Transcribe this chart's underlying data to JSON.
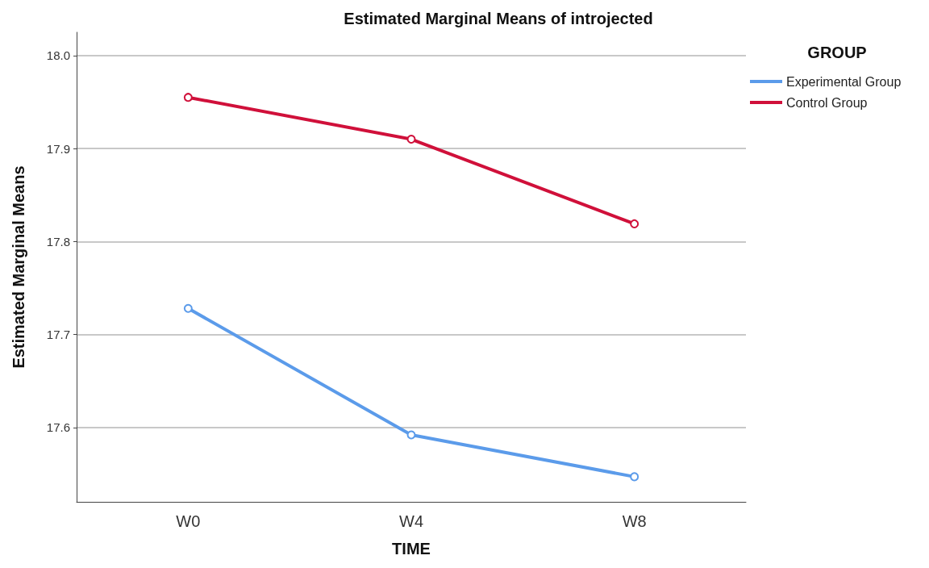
{
  "chart_data": {
    "type": "line",
    "title": "Estimated Marginal Means of introjected",
    "xlabel": "TIME",
    "ylabel": "Estimated Marginal Means",
    "legend_title": "GROUP",
    "categories": [
      "W0",
      "W4",
      "W8"
    ],
    "series": [
      {
        "name": "Experimental Group",
        "color": "#5b9bea",
        "values": [
          17.728,
          17.592,
          17.547
        ]
      },
      {
        "name": "Control Group",
        "color": "#d0103a",
        "values": [
          17.955,
          17.91,
          17.819
        ]
      }
    ],
    "ylim": [
      17.52,
      18.025
    ],
    "yticks": [
      {
        "value": 17.6,
        "label": "17.6"
      },
      {
        "value": 17.7,
        "label": "17.7"
      },
      {
        "value": 17.8,
        "label": "17.8"
      },
      {
        "value": 17.9,
        "label": "17.9"
      },
      {
        "value": 18,
        "label": "18.0"
      }
    ],
    "grid": "y",
    "legend": "top right",
    "marker": "circle",
    "line_style": "solid"
  }
}
